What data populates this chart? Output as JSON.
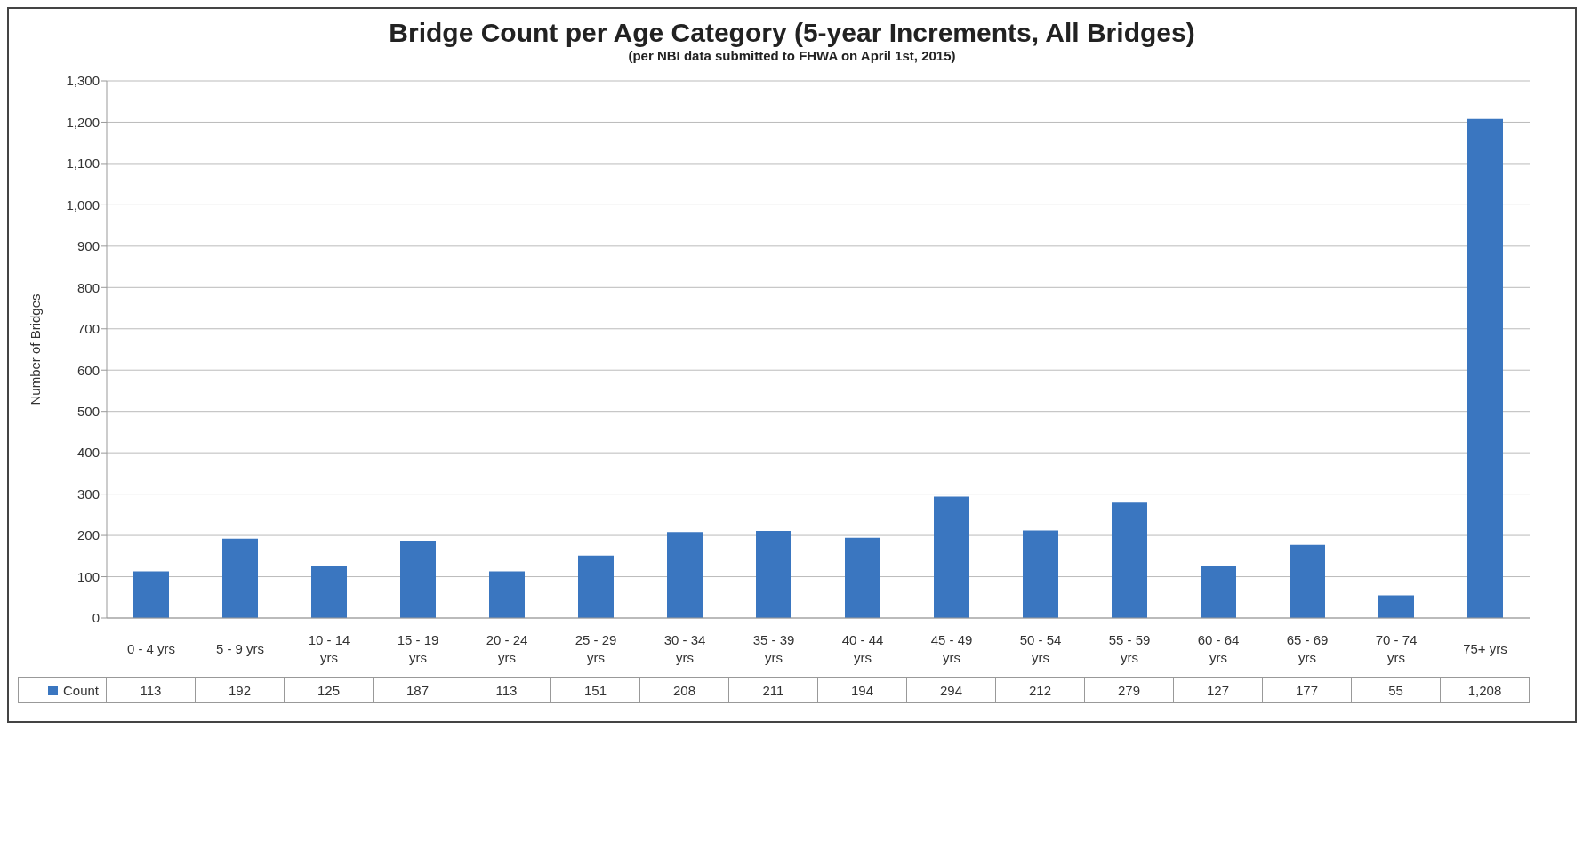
{
  "chart_data": {
    "type": "bar",
    "title": "Bridge Count per Age Category (5-year Increments, All Bridges)",
    "subtitle": "(per NBI data submitted to FHWA on April 1st, 2015)",
    "ylabel": "Number of Bridges",
    "categories": [
      "0 - 4 yrs",
      "5 - 9 yrs",
      "10 - 14 yrs",
      "15 - 19 yrs",
      "20 - 24 yrs",
      "25 - 29 yrs",
      "30 - 34 yrs",
      "35 - 39 yrs",
      "40 - 44 yrs",
      "45 - 49 yrs",
      "50 - 54 yrs",
      "55 - 59 yrs",
      "60 - 64 yrs",
      "65 - 69 yrs",
      "70 - 74 yrs",
      "75+ yrs"
    ],
    "series": [
      {
        "name": "Count",
        "color": "#3a76c0",
        "values": [
          113,
          192,
          125,
          187,
          113,
          151,
          208,
          211,
          194,
          294,
          212,
          279,
          127,
          177,
          55,
          1208
        ],
        "value_labels": [
          "113",
          "192",
          "125",
          "187",
          "113",
          "151",
          "208",
          "211",
          "194",
          "294",
          "212",
          "279",
          "127",
          "177",
          "55",
          "1,208"
        ]
      }
    ],
    "ylim": [
      0,
      1300
    ],
    "yticks": [
      0,
      100,
      200,
      300,
      400,
      500,
      600,
      700,
      800,
      900,
      {
        "value": 1000,
        "label": "1,000"
      },
      {
        "value": 1100,
        "label": "1,100"
      },
      {
        "value": 1200,
        "label": "1,200"
      },
      {
        "value": 1300,
        "label": "1,300"
      }
    ],
    "grid": "y",
    "legend": "bottom"
  }
}
